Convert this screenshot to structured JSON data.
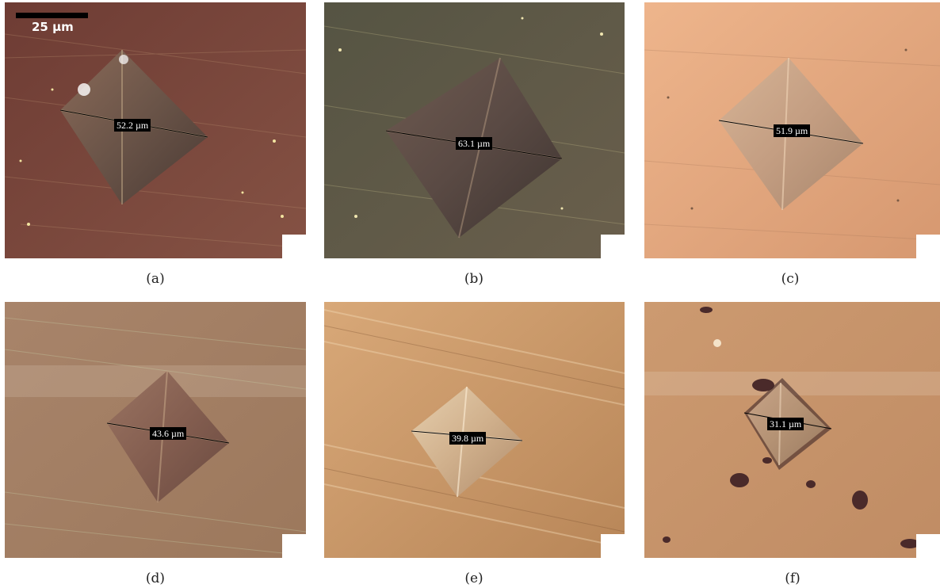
{
  "scale_bar": {
    "label": "25 µm"
  },
  "panels": [
    {
      "caption": "(a)",
      "measurement": "52.2 µm",
      "color": "#7a4438"
    },
    {
      "caption": "(b)",
      "measurement": "63.1 µm",
      "color": "#5e5a47"
    },
    {
      "caption": "(c)",
      "measurement": "51.9 µm",
      "color": "#e3a57c"
    },
    {
      "caption": "(d)",
      "measurement": "43.6 µm",
      "color": "#a98062"
    },
    {
      "caption": "(e)",
      "measurement": "39.8 µm",
      "color": "#cc9a6e"
    },
    {
      "caption": "(f)",
      "measurement": "31.1 µm",
      "color": "#c9976c"
    }
  ]
}
